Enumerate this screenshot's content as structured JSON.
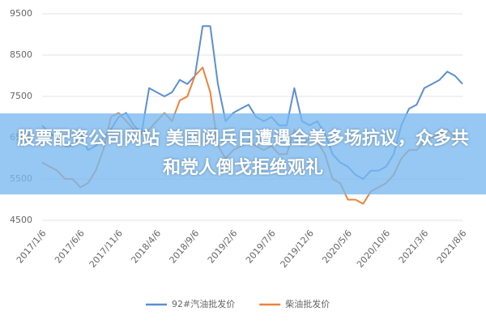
{
  "chart_data": {
    "type": "line",
    "annotation": "股票配资公司网站 美国阅兵日遭遇全美多场抗议，众多共和党人倒戈拒绝观礼",
    "categories": [
      "2017/1/6",
      null,
      null,
      null,
      null,
      "2017/6/6",
      null,
      null,
      null,
      null,
      "2017/11/6",
      null,
      null,
      null,
      null,
      "2018/4/6",
      null,
      null,
      null,
      null,
      "2018/9/6",
      null,
      null,
      null,
      null,
      "2019/2/6",
      null,
      null,
      null,
      null,
      "2019/7/6",
      null,
      null,
      null,
      null,
      "2019/12/6",
      null,
      null,
      null,
      null,
      "2020/5/6",
      null,
      null,
      null,
      null,
      "2020/10/6",
      null,
      null,
      null,
      null,
      "2021/3/6",
      null,
      null,
      null,
      null,
      "2021/8/6"
    ],
    "series": [
      {
        "name": "92#汽油批发价",
        "color": "#5b8fd0",
        "values": [
          6800,
          6600,
          6500,
          6300,
          6300,
          6600,
          6200,
          6300,
          6500,
          6700,
          7000,
          7100,
          6800,
          6600,
          7700,
          7600,
          7500,
          7600,
          7900,
          7800,
          8000,
          9200,
          9200,
          7800,
          6900,
          7100,
          7200,
          7300,
          7000,
          6900,
          7000,
          6800,
          6800,
          7700,
          6900,
          6800,
          6900,
          6600,
          6100,
          5900,
          5800,
          5600,
          5500,
          5700,
          5700,
          5800,
          6100,
          6800,
          7200,
          7300,
          7700,
          7800,
          7900,
          8100,
          8000,
          7800
        ]
      },
      {
        "name": "柴油批发价",
        "color": "#e8843c",
        "values": [
          5900,
          5800,
          5700,
          5500,
          5500,
          5300,
          5400,
          5700,
          6200,
          7000,
          7100,
          6900,
          6700,
          6600,
          6700,
          6900,
          7100,
          6900,
          7400,
          7500,
          8000,
          8200,
          7600,
          6300,
          6000,
          6200,
          6300,
          6400,
          6300,
          6200,
          6300,
          6100,
          6100,
          6700,
          6300,
          6500,
          6400,
          6100,
          5500,
          5400,
          5000,
          5000,
          4900,
          5200,
          5300,
          5400,
          5600,
          6000,
          6200,
          6200,
          6400,
          6500,
          6600,
          6700,
          6500,
          6500
        ]
      }
    ],
    "ylim": [
      4500,
      9500
    ],
    "yticks": [
      4500,
      5500,
      6500,
      7500,
      8500,
      9500
    ],
    "grid": true,
    "legend": "bottom"
  }
}
